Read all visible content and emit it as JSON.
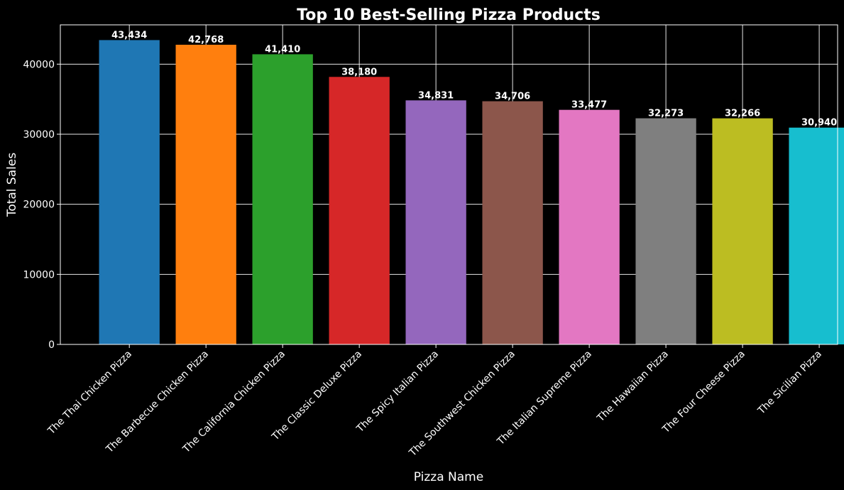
{
  "chart_data": {
    "type": "bar",
    "title": "Top 10 Best-Selling Pizza Products",
    "xlabel": "Pizza Name",
    "ylabel": "Total Sales",
    "categories": [
      "The Thai Chicken Pizza",
      "The Barbecue Chicken Pizza",
      "The California Chicken Pizza",
      "The Classic Deluxe Pizza",
      "The Spicy Italian Pizza",
      "The Southwest Chicken Pizza",
      "The Italian Supreme Pizza",
      "The Hawaiian Pizza",
      "The Four Cheese Pizza",
      "The Sicilian Pizza"
    ],
    "values": [
      43434,
      42768,
      41410,
      38180,
      34831,
      34706,
      33477,
      32273,
      32266,
      30940
    ],
    "data_labels": [
      "43,434",
      "42,768",
      "41,410",
      "38,180",
      "34,831",
      "34,706",
      "33,477",
      "32,273",
      "32,266",
      "30,940"
    ],
    "colors": [
      "#1f77b4",
      "#ff7f0e",
      "#2ca02c",
      "#d62728",
      "#9467bd",
      "#8c564b",
      "#e377c2",
      "#7f7f7f",
      "#bcbd22",
      "#17becf"
    ],
    "ylim": [
      0,
      45607
    ],
    "yticks": [
      0,
      10000,
      20000,
      30000,
      40000
    ],
    "ytick_labels": [
      "0",
      "10000",
      "20000",
      "30000",
      "40000"
    ],
    "grid": true,
    "background": "#000000"
  }
}
